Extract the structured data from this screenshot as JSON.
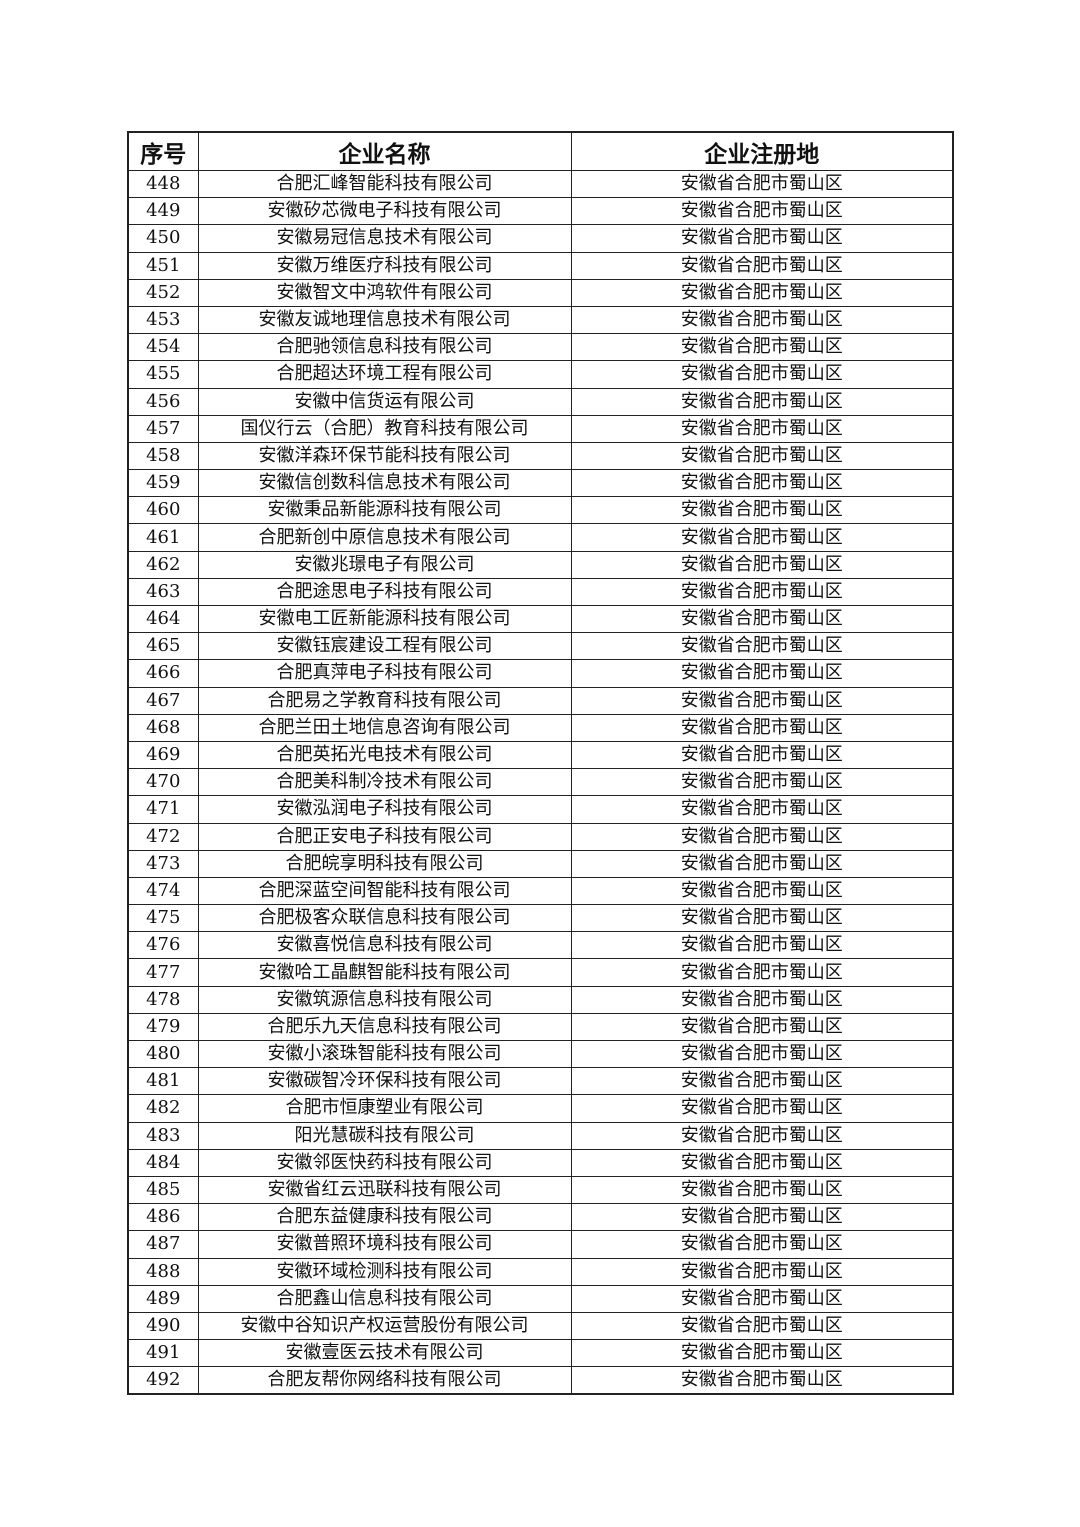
{
  "table": {
    "header": [
      "序号",
      "企业名称",
      "企业注册地"
    ],
    "rows": [
      [
        448,
        "合肥汇峰智能科技有限公司",
        "安徽省合肥市蜀山区"
      ],
      [
        449,
        "安徽矽芯微电子科技有限公司",
        "安徽省合肥市蜀山区"
      ],
      [
        450,
        "安徽易冠信息技术有限公司",
        "安徽省合肥市蜀山区"
      ],
      [
        451,
        "安徽万维医疗科技有限公司",
        "安徽省合肥市蜀山区"
      ],
      [
        452,
        "安徽智文中鸿软件有限公司",
        "安徽省合肥市蜀山区"
      ],
      [
        453,
        "安徽友诚地理信息技术有限公司",
        "安徽省合肥市蜀山区"
      ],
      [
        454,
        "合肥驰领信息科技有限公司",
        "安徽省合肥市蜀山区"
      ],
      [
        455,
        "合肥超达环境工程有限公司",
        "安徽省合肥市蜀山区"
      ],
      [
        456,
        "安徽中信货运有限公司",
        "安徽省合肥市蜀山区"
      ],
      [
        457,
        "国仪行云（合肥）教育科技有限公司",
        "安徽省合肥市蜀山区"
      ],
      [
        458,
        "安徽洋森环保节能科技有限公司",
        "安徽省合肥市蜀山区"
      ],
      [
        459,
        "安徽信创数科信息技术有限公司",
        "安徽省合肥市蜀山区"
      ],
      [
        460,
        "安徽秉品新能源科技有限公司",
        "安徽省合肥市蜀山区"
      ],
      [
        461,
        "合肥新创中原信息技术有限公司",
        "安徽省合肥市蜀山区"
      ],
      [
        462,
        "安徽兆璟电子有限公司",
        "安徽省合肥市蜀山区"
      ],
      [
        463,
        "合肥途思电子科技有限公司",
        "安徽省合肥市蜀山区"
      ],
      [
        464,
        "安徽电工匠新能源科技有限公司",
        "安徽省合肥市蜀山区"
      ],
      [
        465,
        "安徽钰宸建设工程有限公司",
        "安徽省合肥市蜀山区"
      ],
      [
        466,
        "合肥真萍电子科技有限公司",
        "安徽省合肥市蜀山区"
      ],
      [
        467,
        "合肥易之学教育科技有限公司",
        "安徽省合肥市蜀山区"
      ],
      [
        468,
        "合肥兰田土地信息咨询有限公司",
        "安徽省合肥市蜀山区"
      ],
      [
        469,
        "合肥英拓光电技术有限公司",
        "安徽省合肥市蜀山区"
      ],
      [
        470,
        "合肥美科制冷技术有限公司",
        "安徽省合肥市蜀山区"
      ],
      [
        471,
        "安徽泓润电子科技有限公司",
        "安徽省合肥市蜀山区"
      ],
      [
        472,
        "合肥正安电子科技有限公司",
        "安徽省合肥市蜀山区"
      ],
      [
        473,
        "合肥皖享明科技有限公司",
        "安徽省合肥市蜀山区"
      ],
      [
        474,
        "合肥深蓝空间智能科技有限公司",
        "安徽省合肥市蜀山区"
      ],
      [
        475,
        "合肥极客众联信息科技有限公司",
        "安徽省合肥市蜀山区"
      ],
      [
        476,
        "安徽喜悦信息科技有限公司",
        "安徽省合肥市蜀山区"
      ],
      [
        477,
        "安徽哈工晶麒智能科技有限公司",
        "安徽省合肥市蜀山区"
      ],
      [
        478,
        "安徽筑源信息科技有限公司",
        "安徽省合肥市蜀山区"
      ],
      [
        479,
        "合肥乐九天信息科技有限公司",
        "安徽省合肥市蜀山区"
      ],
      [
        480,
        "安徽小滚珠智能科技有限公司",
        "安徽省合肥市蜀山区"
      ],
      [
        481,
        "安徽碳智冷环保科技有限公司",
        "安徽省合肥市蜀山区"
      ],
      [
        482,
        "合肥市恒康塑业有限公司",
        "安徽省合肥市蜀山区"
      ],
      [
        483,
        "阳光慧碳科技有限公司",
        "安徽省合肥市蜀山区"
      ],
      [
        484,
        "安徽邻医快药科技有限公司",
        "安徽省合肥市蜀山区"
      ],
      [
        485,
        "安徽省红云迅联科技有限公司",
        "安徽省合肥市蜀山区"
      ],
      [
        486,
        "合肥东益健康科技有限公司",
        "安徽省合肥市蜀山区"
      ],
      [
        487,
        "安徽普照环境科技有限公司",
        "安徽省合肥市蜀山区"
      ],
      [
        488,
        "安徽环域检测科技有限公司",
        "安徽省合肥市蜀山区"
      ],
      [
        489,
        "合肥鑫山信息科技有限公司",
        "安徽省合肥市蜀山区"
      ],
      [
        490,
        "安徽中谷知识产权运营股份有限公司",
        "安徽省合肥市蜀山区"
      ],
      [
        491,
        "安徽壹医云技术有限公司",
        "安徽省合肥市蜀山区"
      ],
      [
        492,
        "合肥友帮你网络科技有限公司",
        "安徽省合肥市蜀山区"
      ]
    ]
  }
}
